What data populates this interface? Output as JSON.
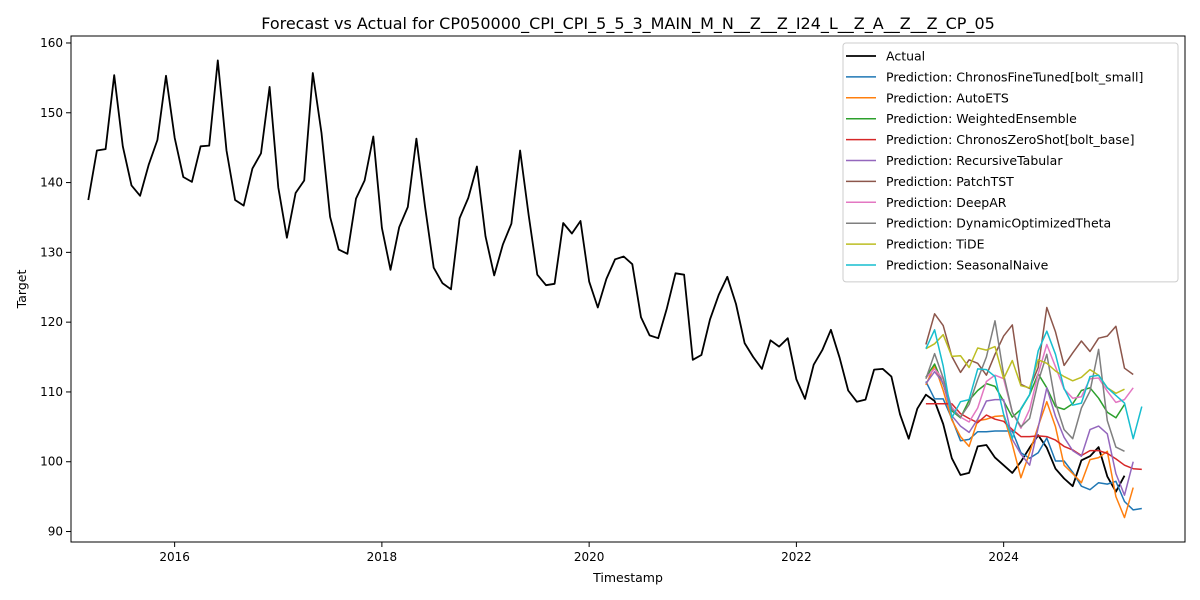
{
  "chart_data": {
    "type": "line",
    "title": "Forecast vs Actual for CP050000_CPI_CPI_5_5_3_MAIN_M_N__Z__Z_I24_L__Z_A__Z__Z_CP_05",
    "xlabel": "Timestamp",
    "ylabel": "Target",
    "xlim": [
      2015.0,
      2025.75
    ],
    "ylim": [
      88.5,
      161
    ],
    "xticks": [
      2016,
      2018,
      2020,
      2022,
      2024
    ],
    "yticks": [
      90,
      100,
      110,
      120,
      130,
      140,
      150,
      160
    ],
    "grid": false,
    "legend_position": "top-right",
    "actual": {
      "name": "Actual",
      "color": "#000000",
      "start": 2015.167,
      "step": 0.08333,
      "values": [
        137.5,
        144.6,
        144.8,
        155.4,
        145.2,
        139.6,
        138.1,
        142.6,
        146.1,
        155.3,
        146.4,
        140.8,
        140.1,
        145.2,
        145.3,
        157.5,
        144.6,
        137.5,
        136.7,
        142,
        144.2,
        153.7,
        139.3,
        132.1,
        138.5,
        140.3,
        155.7,
        147.1,
        135.1,
        130.4,
        129.8,
        137.7,
        140.3,
        146.6,
        133.5,
        127.5,
        133.6,
        136.5,
        146.3,
        136.5,
        127.8,
        125.6,
        124.7,
        134.9,
        137.8,
        142.3,
        132.3,
        126.7,
        131.1,
        134.1,
        144.6,
        135.3,
        126.8,
        125.3,
        125.5,
        134.2,
        132.7,
        134.5,
        125.8,
        122.1,
        126.2,
        129,
        129.4,
        128.3,
        120.7,
        118.1,
        117.7,
        122,
        127,
        126.8,
        114.6,
        115.3,
        120.4,
        123.9,
        126.5,
        122.6,
        117,
        115,
        113.3,
        117.4,
        116.5,
        117.7,
        111.8,
        109,
        113.9,
        116,
        118.9,
        114.9,
        110.2,
        108.6,
        108.9,
        113.2,
        113.3,
        112.2,
        106.8,
        103.3,
        107.6,
        109.6,
        108.7,
        105.4,
        100.5,
        98.1,
        98.4,
        102.2,
        102.4,
        100.6,
        99.5,
        98.4,
        100,
        102,
        103.8,
        102,
        99,
        97.6,
        96.5,
        100.2,
        100.8,
        102.1,
        97.9,
        95.7,
        98
      ]
    },
    "forecast_start": 2023.25,
    "forecast_step": 0.08333,
    "series": [
      {
        "name": "Prediction: ChronosFineTuned[bolt_small]",
        "color": "#1f77b4",
        "values": [
          111.5,
          109,
          109,
          106.2,
          103,
          103.2,
          104.3,
          104.3,
          104.4,
          104.4,
          104.4,
          101.3,
          100.5,
          101.3,
          103.4,
          100.1,
          100.1,
          98.5,
          96.5,
          96,
          97,
          96.8,
          97.2,
          94.3,
          93.1,
          93.3
        ]
      },
      {
        "name": "Prediction: AutoETS",
        "color": "#ff7f0e",
        "values": [
          111,
          113.8,
          110.2,
          106,
          103.6,
          102.2,
          105.9,
          106.1,
          106.5,
          106.6,
          102.5,
          97.7,
          101.3,
          105.1,
          108.6,
          105,
          99.5,
          98.3,
          97,
          100.3,
          100.6,
          101.5,
          95,
          92,
          96.3
        ]
      },
      {
        "name": "Prediction: WeightedEnsemble",
        "color": "#2ca02c",
        "values": [
          112.1,
          114,
          111.1,
          107.3,
          106.3,
          108.8,
          110.2,
          111.2,
          110.8,
          108.7,
          106.4,
          107.5,
          109.6,
          112.6,
          110.6,
          107.9,
          107.5,
          108.3,
          110.2,
          110.6,
          109.1,
          107.1,
          106.3,
          108.2
        ]
      },
      {
        "name": "Prediction: ChronosZeroShot[bolt_base]",
        "color": "#d62728",
        "values": [
          108.3,
          108.3,
          108.3,
          108.3,
          106.9,
          106.2,
          105.6,
          106.7,
          106.1,
          105.8,
          104.6,
          103.6,
          103.6,
          103.7,
          103.6,
          103.1,
          102.2,
          101.7,
          100.9,
          101.6,
          101.6,
          101.2,
          100.4,
          99.5,
          99,
          98.9
        ]
      },
      {
        "name": "Prediction: RecursiveTabular",
        "color": "#9467bd",
        "values": [
          111.2,
          112.9,
          111.3,
          106.6,
          105.1,
          104.2,
          106.1,
          108.7,
          108.9,
          108.9,
          103.2,
          101.1,
          99.5,
          104.9,
          110.6,
          106.5,
          103.5,
          101.6,
          100.8,
          104.6,
          105.1,
          104,
          98.3,
          95.2,
          100
        ]
      },
      {
        "name": "Prediction: PatchTST",
        "color": "#8c564b",
        "values": [
          116.8,
          121.2,
          119.5,
          115.1,
          112.8,
          114.6,
          114.1,
          112.4,
          115.4,
          118,
          119.6,
          111.1,
          110.5,
          113.5,
          122.1,
          118.6,
          113.8,
          115.6,
          117.3,
          115.8,
          117.7,
          118,
          119.4,
          113.4,
          112.5
        ]
      },
      {
        "name": "Prediction: DeepAR",
        "color": "#e377c2",
        "values": [
          112,
          113.3,
          111.8,
          107.8,
          106.4,
          105.7,
          107.7,
          111.5,
          112.4,
          111.9,
          107.1,
          104.8,
          107.5,
          112.6,
          116.8,
          113.6,
          110.4,
          109.1,
          109.3,
          111.9,
          112,
          110.1,
          108.5,
          108.9,
          110.6
        ]
      },
      {
        "name": "Prediction: DynamicOptimizedTheta",
        "color": "#7f7f7f",
        "values": [
          111.9,
          115.5,
          112,
          107.5,
          106.4,
          108.2,
          111.8,
          115,
          120.2,
          112.5,
          107.1,
          105,
          106.2,
          111.5,
          115.4,
          108.4,
          104.6,
          103.3,
          107.7,
          110.1,
          116.1,
          105.9,
          102.1,
          101.5
        ]
      },
      {
        "name": "Prediction: TiDE",
        "color": "#bcbd22",
        "values": [
          116.2,
          116.9,
          118.2,
          115.1,
          115.2,
          113.5,
          116.3,
          116,
          116.5,
          111.9,
          114.5,
          110.9,
          110.6,
          114.6,
          114.1,
          113,
          112.2,
          111.6,
          112.1,
          113.2,
          112.4,
          110.6,
          109.8,
          110.4
        ]
      },
      {
        "name": "Prediction: SeasonalNaive",
        "color": "#17becf",
        "values": [
          116.2,
          118.9,
          113.7,
          106.3,
          108.6,
          108.9,
          113.3,
          113.2,
          112.2,
          106.8,
          103.3,
          107.6,
          109.6,
          115.9,
          118.7,
          115.4,
          110.5,
          108.1,
          108.4,
          112.2,
          112.4,
          110.6,
          109.5,
          108.4,
          103.3,
          107.9
        ]
      }
    ]
  }
}
